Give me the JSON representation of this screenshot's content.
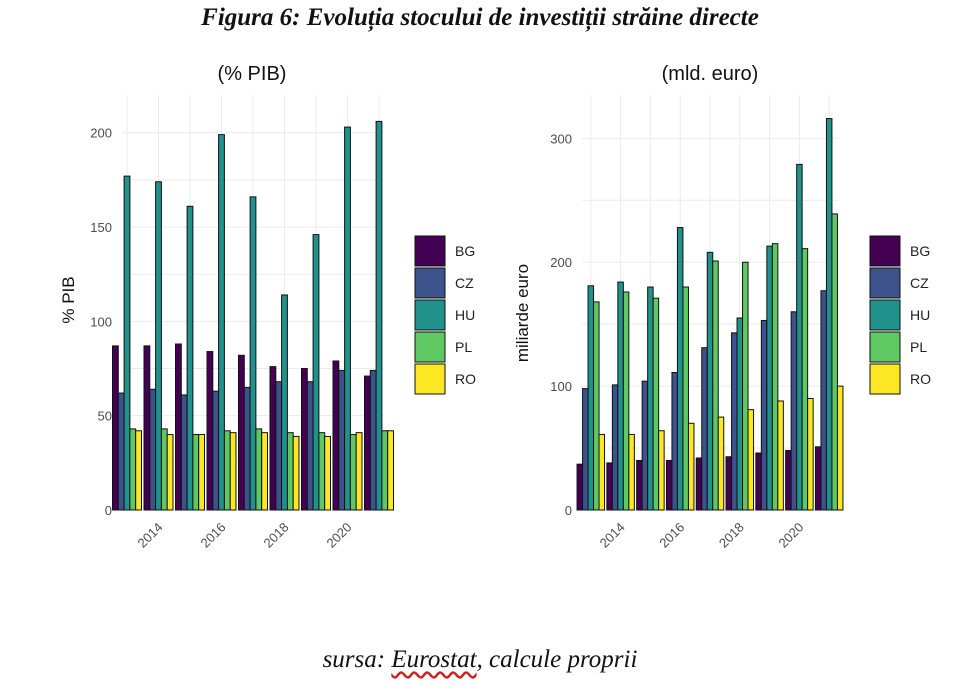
{
  "figure_title": "Figura 6: Evoluția stocului de investiții străine directe",
  "source": {
    "prefix": "sursa: ",
    "name": "Eurostat",
    "suffix": ", calcule proprii"
  },
  "colors": {
    "BG": "#440154",
    "CZ": "#3b528b",
    "HU": "#21918c",
    "PL": "#5ec962",
    "RO": "#fde725"
  },
  "chart_data": [
    {
      "type": "bar",
      "title": "(% PIB)",
      "ylabel": "% PIB",
      "xlabel": "",
      "ylim": [
        0,
        220
      ],
      "yticks": [
        0,
        50,
        100,
        150,
        200
      ],
      "x": [
        2013,
        2014,
        2015,
        2016,
        2017,
        2018,
        2019,
        2020,
        2021
      ],
      "xticks": [
        "2014",
        "2016",
        "2018",
        "2020"
      ],
      "grid": true,
      "legend": "right",
      "series": [
        {
          "name": "BG",
          "values": [
            87,
            87,
            88,
            84,
            82,
            76,
            75,
            79,
            71
          ]
        },
        {
          "name": "CZ",
          "values": [
            62,
            64,
            61,
            63,
            65,
            68,
            68,
            74,
            74
          ]
        },
        {
          "name": "HU",
          "values": [
            177,
            174,
            161,
            199,
            166,
            114,
            146,
            203,
            206
          ]
        },
        {
          "name": "PL",
          "values": [
            43,
            43,
            40,
            42,
            43,
            41,
            41,
            40,
            42
          ]
        },
        {
          "name": "RO",
          "values": [
            42,
            40,
            40,
            41,
            41,
            39,
            39,
            41,
            42
          ]
        }
      ]
    },
    {
      "type": "bar",
      "title": "(mld. euro)",
      "ylabel": "miliarde euro",
      "xlabel": "",
      "ylim": [
        0,
        335
      ],
      "yticks": [
        0,
        100,
        200,
        300
      ],
      "x": [
        2013,
        2014,
        2015,
        2016,
        2017,
        2018,
        2019,
        2020,
        2021
      ],
      "xticks": [
        "2014",
        "2016",
        "2018",
        "2020"
      ],
      "grid": true,
      "legend": "right",
      "series": [
        {
          "name": "BG",
          "values": [
            37,
            38,
            40,
            40,
            42,
            43,
            46,
            48,
            51
          ]
        },
        {
          "name": "CZ",
          "values": [
            98,
            101,
            104,
            111,
            131,
            143,
            153,
            160,
            177
          ]
        },
        {
          "name": "HU",
          "values": [
            181,
            184,
            180,
            228,
            208,
            155,
            213,
            279,
            316
          ]
        },
        {
          "name": "PL",
          "values": [
            168,
            176,
            171,
            180,
            201,
            200,
            215,
            211,
            239
          ]
        },
        {
          "name": "RO",
          "values": [
            61,
            61,
            64,
            70,
            75,
            81,
            88,
            90,
            100
          ]
        }
      ]
    }
  ]
}
